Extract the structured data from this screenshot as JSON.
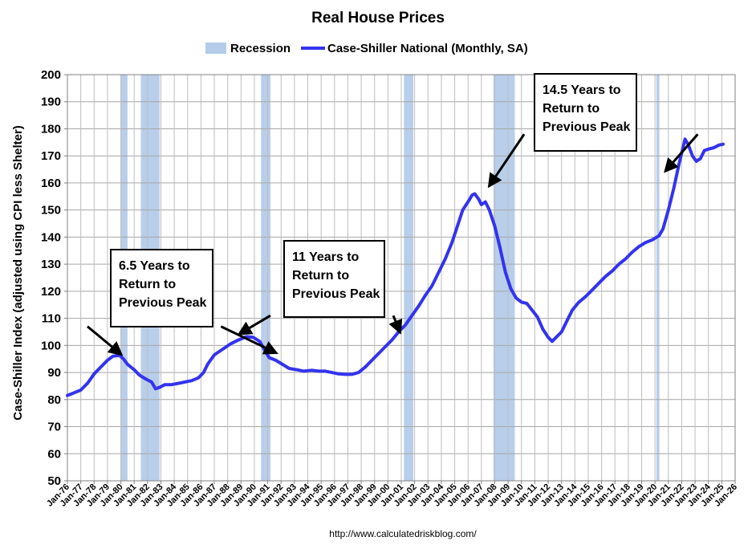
{
  "chart_data": {
    "type": "line",
    "title": "Real House Prices",
    "ylabel": "Case-Shiller Index (adjusted using CPI less Shelter)",
    "source": "http://www.calculatedriskblog.com/",
    "ylim": [
      50,
      200
    ],
    "xlim": [
      1976.0,
      2026.0
    ],
    "yticks": [
      50,
      60,
      70,
      80,
      90,
      100,
      110,
      120,
      130,
      140,
      150,
      160,
      170,
      180,
      190,
      200
    ],
    "grid": true,
    "legend_position": "top-center",
    "legend": [
      {
        "label": "Recession",
        "kind": "area",
        "color": "#b4cbe9"
      },
      {
        "label": "Case-Shiller National (Monthly, SA)",
        "kind": "line",
        "color": "#3333ee"
      }
    ],
    "xticks": [
      {
        "label": "Jan-76",
        "x": 1976
      },
      {
        "label": "Jan-77",
        "x": 1977
      },
      {
        "label": "Jan-78",
        "x": 1978
      },
      {
        "label": "Jan-79",
        "x": 1979
      },
      {
        "label": "Jan-80",
        "x": 1980
      },
      {
        "label": "Jan-81",
        "x": 1981
      },
      {
        "label": "Jan-82",
        "x": 1982
      },
      {
        "label": "Jan-83",
        "x": 1983
      },
      {
        "label": "Jan-84",
        "x": 1984
      },
      {
        "label": "Jan-85",
        "x": 1985
      },
      {
        "label": "Jan-86",
        "x": 1986
      },
      {
        "label": "Jan-87",
        "x": 1987
      },
      {
        "label": "Jan-88",
        "x": 1988
      },
      {
        "label": "Jan-89",
        "x": 1989
      },
      {
        "label": "Jan-90",
        "x": 1990
      },
      {
        "label": "Jan-91",
        "x": 1991
      },
      {
        "label": "Jan-92",
        "x": 1992
      },
      {
        "label": "Jan-93",
        "x": 1993
      },
      {
        "label": "Jan-94",
        "x": 1994
      },
      {
        "label": "Jan-95",
        "x": 1995
      },
      {
        "label": "Jan-96",
        "x": 1996
      },
      {
        "label": "Jan-97",
        "x": 1997
      },
      {
        "label": "Jan-98",
        "x": 1998
      },
      {
        "label": "Jan-99",
        "x": 1999
      },
      {
        "label": "Jan-00",
        "x": 2000
      },
      {
        "label": "Jan-01",
        "x": 2001
      },
      {
        "label": "Jan-02",
        "x": 2002
      },
      {
        "label": "Jan-03",
        "x": 2003
      },
      {
        "label": "Jan-04",
        "x": 2004
      },
      {
        "label": "Jan-05",
        "x": 2005
      },
      {
        "label": "Jan-06",
        "x": 2006
      },
      {
        "label": "Jan-07",
        "x": 2007
      },
      {
        "label": "Jan-08",
        "x": 2008
      },
      {
        "label": "Jan-09",
        "x": 2009
      },
      {
        "label": "Jan-10",
        "x": 2010
      },
      {
        "label": "Jan-11",
        "x": 2011
      },
      {
        "label": "Jan-12",
        "x": 2012
      },
      {
        "label": "Jan-13",
        "x": 2013
      },
      {
        "label": "Jan-14",
        "x": 2014
      },
      {
        "label": "Jan-15",
        "x": 2015
      },
      {
        "label": "Jan-16",
        "x": 2016
      },
      {
        "label": "Jan-17",
        "x": 2017
      },
      {
        "label": "Jan-18",
        "x": 2018
      },
      {
        "label": "Jan-19",
        "x": 2019
      },
      {
        "label": "Jan-20",
        "x": 2020
      },
      {
        "label": "Jan-21",
        "x": 2021
      },
      {
        "label": "Jan-22",
        "x": 2022
      },
      {
        "label": "Jan-23",
        "x": 2023
      },
      {
        "label": "Jan-24",
        "x": 2024
      },
      {
        "label": "Jan-25",
        "x": 2025
      },
      {
        "label": "Jan-26",
        "x": 2026
      }
    ],
    "recessions": [
      {
        "start": 1980.0,
        "end": 1980.5
      },
      {
        "start": 1981.5,
        "end": 1982.9
      },
      {
        "start": 1990.5,
        "end": 1991.2
      },
      {
        "start": 2001.2,
        "end": 2001.9
      },
      {
        "start": 2007.9,
        "end": 2009.5
      },
      {
        "start": 2020.1,
        "end": 2020.33
      }
    ],
    "series": [
      {
        "name": "Case-Shiller National (Monthly, SA)",
        "color": "#3333ee",
        "points": [
          [
            1976.0,
            81.5
          ],
          [
            1976.5,
            82.5
          ],
          [
            1977.0,
            83.5
          ],
          [
            1977.5,
            86
          ],
          [
            1978.0,
            89.5
          ],
          [
            1978.5,
            92
          ],
          [
            1979.0,
            94.5
          ],
          [
            1979.4,
            96
          ],
          [
            1979.9,
            96.3
          ],
          [
            1980.2,
            95
          ],
          [
            1980.5,
            93
          ],
          [
            1981.0,
            91
          ],
          [
            1981.4,
            89
          ],
          [
            1981.9,
            87.5
          ],
          [
            1982.3,
            86.5
          ],
          [
            1982.6,
            84
          ],
          [
            1982.9,
            84.5
          ],
          [
            1983.3,
            85.5
          ],
          [
            1983.8,
            85.5
          ],
          [
            1984.3,
            86
          ],
          [
            1984.8,
            86.5
          ],
          [
            1985.3,
            87
          ],
          [
            1985.8,
            88
          ],
          [
            1986.2,
            90
          ],
          [
            1986.5,
            93
          ],
          [
            1987.0,
            96.5
          ],
          [
            1987.6,
            98.5
          ],
          [
            1988.2,
            100.5
          ],
          [
            1988.8,
            102
          ],
          [
            1989.4,
            103.2
          ],
          [
            1989.9,
            103
          ],
          [
            1990.4,
            101.5
          ],
          [
            1990.8,
            98
          ],
          [
            1991.1,
            95.5
          ],
          [
            1991.6,
            94.5
          ],
          [
            1992.1,
            93
          ],
          [
            1992.6,
            91.5
          ],
          [
            1993.2,
            91
          ],
          [
            1993.7,
            90.5
          ],
          [
            1994.3,
            90.8
          ],
          [
            1994.8,
            90.5
          ],
          [
            1995.3,
            90.5
          ],
          [
            1995.8,
            90
          ],
          [
            1996.3,
            89.5
          ],
          [
            1996.8,
            89.3
          ],
          [
            1997.3,
            89.3
          ],
          [
            1997.8,
            90
          ],
          [
            1998.3,
            92
          ],
          [
            1998.8,
            94.5
          ],
          [
            1999.3,
            97
          ],
          [
            1999.8,
            99.5
          ],
          [
            2000.3,
            102
          ],
          [
            2000.8,
            105
          ],
          [
            2001.3,
            107.5
          ],
          [
            2001.8,
            111
          ],
          [
            2002.3,
            114.5
          ],
          [
            2002.8,
            118.5
          ],
          [
            2003.3,
            122
          ],
          [
            2003.8,
            127
          ],
          [
            2004.3,
            132
          ],
          [
            2004.8,
            138
          ],
          [
            2005.2,
            144
          ],
          [
            2005.6,
            150
          ],
          [
            2006.0,
            153
          ],
          [
            2006.3,
            155.5
          ],
          [
            2006.5,
            156
          ],
          [
            2006.8,
            154
          ],
          [
            2007.0,
            152
          ],
          [
            2007.3,
            153
          ],
          [
            2007.6,
            150
          ],
          [
            2008.0,
            144
          ],
          [
            2008.4,
            136
          ],
          [
            2008.8,
            127
          ],
          [
            2009.2,
            121
          ],
          [
            2009.6,
            117.5
          ],
          [
            2010.0,
            116
          ],
          [
            2010.4,
            115.5
          ],
          [
            2010.8,
            113
          ],
          [
            2011.2,
            110.5
          ],
          [
            2011.6,
            106
          ],
          [
            2012.0,
            103
          ],
          [
            2012.3,
            101.5
          ],
          [
            2012.7,
            103.5
          ],
          [
            2013.0,
            105
          ],
          [
            2013.4,
            109
          ],
          [
            2013.8,
            113
          ],
          [
            2014.3,
            116
          ],
          [
            2014.8,
            118
          ],
          [
            2015.3,
            120.5
          ],
          [
            2015.8,
            123
          ],
          [
            2016.3,
            125.5
          ],
          [
            2016.8,
            127.5
          ],
          [
            2017.3,
            130
          ],
          [
            2017.8,
            132
          ],
          [
            2018.3,
            134.5
          ],
          [
            2018.8,
            136.5
          ],
          [
            2019.3,
            138
          ],
          [
            2019.8,
            139
          ],
          [
            2020.3,
            140.5
          ],
          [
            2020.6,
            143
          ],
          [
            2021.0,
            150
          ],
          [
            2021.4,
            158
          ],
          [
            2021.8,
            167
          ],
          [
            2022.0,
            171
          ],
          [
            2022.25,
            176.2
          ],
          [
            2022.5,
            174
          ],
          [
            2022.8,
            170
          ],
          [
            2023.1,
            168
          ],
          [
            2023.4,
            169
          ],
          [
            2023.7,
            172
          ],
          [
            2024.0,
            172.5
          ],
          [
            2024.4,
            173
          ],
          [
            2024.8,
            174
          ],
          [
            2025.1,
            174.3
          ]
        ]
      }
    ],
    "annotations": [
      {
        "id": "six",
        "lines": [
          "6.5 Years to",
          "Return to",
          "Previous Peak"
        ],
        "arrows": [
          {
            "from": [
              1977.5,
              107
            ],
            "to": [
              1980.0,
              96.8
            ]
          },
          {
            "from": [
              1987.5,
              107
            ],
            "to": [
              1991.6,
              97.3
            ]
          }
        ]
      },
      {
        "id": "eleven",
        "lines": [
          "11 Years to",
          "Return to",
          "Previous Peak"
        ],
        "arrows": [
          {
            "from": [
              1991.2,
              111
            ],
            "to": [
              1988.9,
              104.3
            ]
          },
          {
            "from": [
              2000.4,
              111
            ],
            "to": [
              2000.9,
              105.0
            ]
          }
        ]
      },
      {
        "id": "fourteen",
        "lines": [
          "14.5 Years to",
          "Return to",
          "Previous Peak"
        ],
        "arrows": [
          {
            "from": [
              2010.2,
              178
            ],
            "to": [
              2007.6,
              159.0
            ]
          },
          {
            "from": [
              2023.2,
              178
            ],
            "to": [
              2020.8,
              164.5
            ]
          }
        ]
      }
    ]
  }
}
